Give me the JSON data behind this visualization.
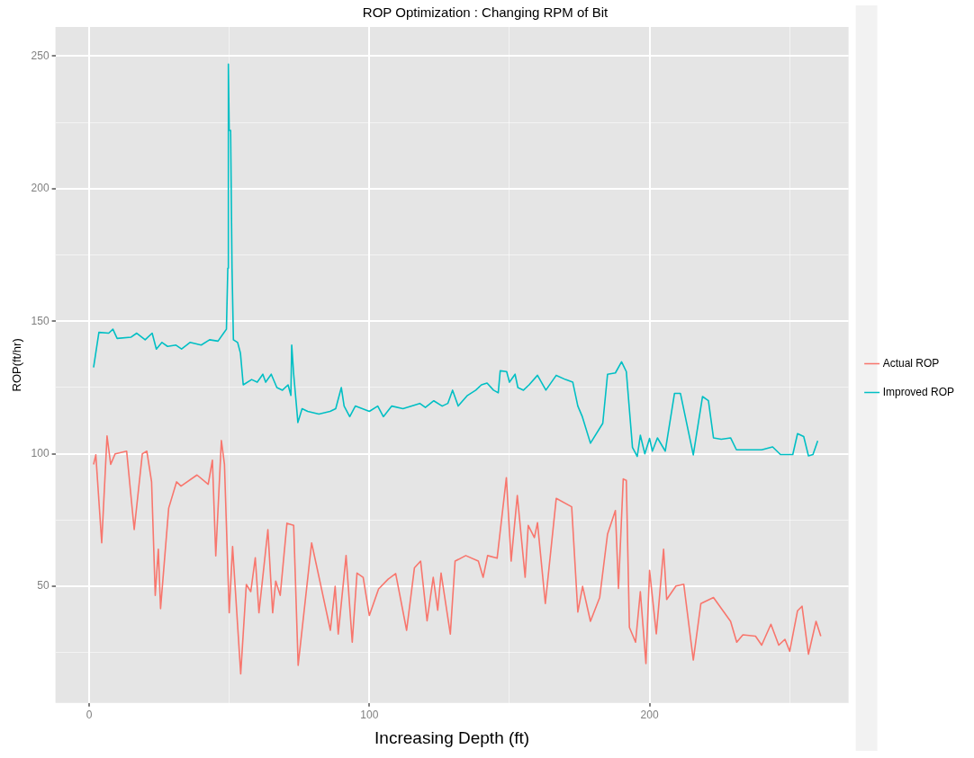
{
  "chart_data": {
    "type": "line",
    "title": "ROP Optimization : Changing RPM of Bit",
    "xlabel": "Increasing Depth (ft)",
    "ylabel": "ROP(ft/hr)",
    "xlim": [
      -12,
      271
    ],
    "xticks": [
      0,
      {
        "value": 50,
        "label": null
      },
      100,
      {
        "value": 150,
        "label": null
      },
      200,
      {
        "value": 250,
        "label": null
      }
    ],
    "ylim": [
      6,
      261
    ],
    "yticks": [
      {
        "value": 25,
        "label": null
      },
      50,
      {
        "value": 75,
        "label": null
      },
      100,
      {
        "value": 125,
        "label": null
      },
      150,
      {
        "value": 175,
        "label": null
      },
      200,
      {
        "value": 225,
        "label": null
      },
      250
    ],
    "grid": true,
    "legend": "right",
    "marker": "none",
    "line_style": "solid",
    "series": [
      {
        "name": "Actual ROP",
        "color": "#f8766d",
        "x": [
          1.6,
          2.4,
          4.5,
          6.4,
          7.7,
          9.3,
          13.4,
          16.1,
          19,
          20.6,
          22.3,
          23.6,
          24.7,
          25.5,
          28.4,
          31.2,
          32.8,
          38.5,
          42.5,
          44,
          45.2,
          47.2,
          48.3,
          50,
          51.2,
          54.1,
          56.1,
          57.7,
          59.3,
          60.6,
          63.8,
          65.5,
          66.6,
          68.2,
          70.6,
          73,
          74.6,
          79.4,
          82.2,
          86.1,
          87.8,
          88.9,
          91.7,
          93.9,
          95.6,
          97.8,
          100,
          103.3,
          106.7,
          109.4,
          113.3,
          116.1,
          118.3,
          120.6,
          122.8,
          124.4,
          125.6,
          128.9,
          130.6,
          134.4,
          138.9,
          140.6,
          142.2,
          145.6,
          148.9,
          150.6,
          152.8,
          155.6,
          156.7,
          158.9,
          160,
          162.8,
          166.7,
          172.2,
          174.4,
          176.1,
          178.9,
          182.2,
          185,
          187.8,
          188.9,
          190.6,
          191.7,
          192.8,
          195,
          196.7,
          198.7,
          200,
          202.4,
          205,
          206.1,
          209.4,
          212.2,
          215.6,
          218.3,
          222.8,
          228.9,
          231.1,
          233.3,
          237.8,
          240,
          243.3,
          246.1,
          248.3,
          250,
          252.8,
          254.4,
          256.7,
          259.4,
          261.1
        ],
        "values": [
          96,
          99.6,
          66.4,
          106.7,
          96,
          100,
          101,
          71.4,
          100,
          101,
          89.4,
          46.6,
          64,
          41.6,
          79.5,
          89.4,
          87.8,
          92,
          88.5,
          97.6,
          61.5,
          105,
          96,
          40,
          65,
          17,
          50.7,
          48,
          60.8,
          40,
          71.4,
          40,
          52,
          46.6,
          73.8,
          73,
          20.2,
          66.4,
          52.7,
          33.4,
          50,
          32,
          61.6,
          28.9,
          55,
          53.4,
          39,
          49,
          52.7,
          54.8,
          33.4,
          57,
          59.5,
          37,
          53.4,
          41,
          55,
          32,
          59.5,
          61.6,
          59.5,
          53.4,
          61.6,
          60.6,
          91,
          59.5,
          84.3,
          53.4,
          73,
          68.4,
          74,
          43.5,
          83.2,
          80,
          40.3,
          50,
          36.8,
          45.8,
          69.7,
          78.6,
          49.2,
          90.5,
          90,
          34.5,
          28.9,
          48,
          20.9,
          56,
          32.1,
          64,
          45,
          50.1,
          50.8,
          22.2,
          43.5,
          45.8,
          36.8,
          28.9,
          31.7,
          31.2,
          27.8,
          35.7,
          27.8,
          30,
          25.5,
          40.8,
          42.5,
          24.4,
          36.8,
          31.2
        ]
      },
      {
        "name": "Improved ROP",
        "color": "#00bfc4",
        "x": [
          1.6,
          3.5,
          7,
          8.5,
          10,
          15,
          17,
          20,
          22.5,
          24,
          26,
          28,
          31,
          33,
          36,
          40,
          43,
          46,
          48,
          49,
          49.5,
          49.7,
          50,
          50.5,
          51,
          51.5,
          53,
          54,
          55,
          58,
          60,
          62,
          63,
          65,
          67,
          69,
          71,
          72,
          72.3,
          73,
          74,
          74.5,
          76,
          78,
          82,
          86,
          88,
          90,
          91,
          93,
          95,
          100,
          103,
          105,
          108,
          112,
          118,
          120,
          123,
          126,
          128,
          129.7,
          131.7,
          135,
          138,
          140,
          142,
          144.3,
          146,
          146.7,
          149,
          150,
          152,
          153,
          155,
          157,
          160,
          163,
          166.7,
          170,
          172.6,
          174.4,
          176,
          178.9,
          183.3,
          185,
          187.8,
          190,
          191.7,
          193.9,
          195.6,
          196.7,
          198.3,
          200,
          201,
          202.8,
          205.6,
          208.9,
          211,
          215.6,
          218.9,
          221,
          222.8,
          225.6,
          228.9,
          231,
          240,
          243.9,
          246.7,
          251.1,
          252.8,
          255,
          256.7,
          258.3,
          260
        ],
        "values": [
          132.6,
          145.8,
          145.5,
          147,
          143.5,
          144,
          145.5,
          143,
          145.5,
          139.5,
          142,
          140.5,
          141,
          139.5,
          142,
          141,
          143,
          142.5,
          145.5,
          147,
          170,
          247,
          222,
          222,
          170,
          143,
          142,
          138,
          126,
          128,
          127,
          130,
          127,
          130,
          125,
          124,
          126,
          122,
          141,
          130,
          118,
          111.8,
          117,
          116,
          115,
          116,
          117,
          125,
          118,
          114,
          118,
          116,
          118,
          114,
          118,
          117,
          119,
          117.5,
          120,
          118,
          119,
          124,
          118,
          122,
          124,
          126,
          126.7,
          124,
          123,
          131.3,
          131,
          127,
          130,
          125,
          124,
          126,
          129.6,
          124,
          129.6,
          128,
          127,
          118,
          114,
          104,
          111.5,
          130,
          130.5,
          134.7,
          131,
          102.4,
          99,
          107,
          100,
          105.8,
          101,
          106,
          101,
          122.8,
          122.8,
          99.6,
          121.6,
          120,
          106,
          105.5,
          106,
          101.5,
          101.5,
          102.6,
          99.7,
          99.7,
          107.6,
          106.5,
          99.2,
          99.7,
          104.9
        ]
      }
    ]
  }
}
